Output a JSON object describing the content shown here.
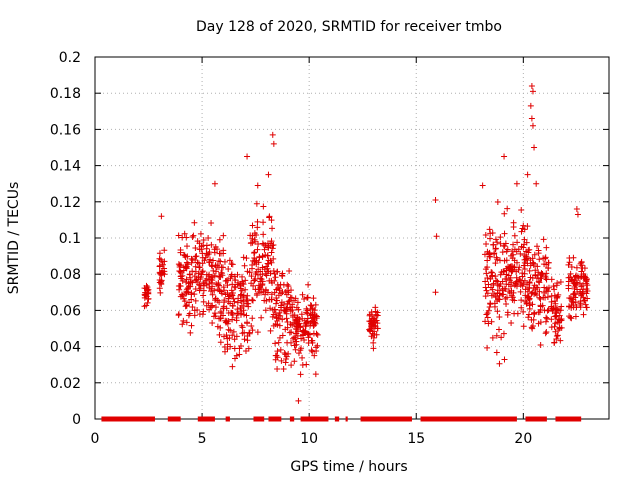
{
  "chart_data": {
    "type": "scatter",
    "title": "Day 128 of 2020, SRMTID for receiver tmbo",
    "xlabel": "GPS time / hours",
    "ylabel": "SRMTID / TECUs",
    "xlim": [
      0,
      24
    ],
    "ylim": [
      0,
      0.2
    ],
    "x_ticks": [
      0,
      5,
      10,
      15,
      20
    ],
    "x_tick_labels": [
      "0",
      "5",
      "10",
      "15",
      "20"
    ],
    "y_ticks": [
      0,
      0.02,
      0.04,
      0.06,
      0.08,
      0.1,
      0.12,
      0.14,
      0.16,
      0.18,
      0.2
    ],
    "y_tick_labels": [
      "0",
      "0.02",
      "0.04",
      "0.06",
      "0.08",
      "0.1",
      "0.12",
      "0.14",
      "0.16",
      "0.18",
      "0.2"
    ],
    "grid": true,
    "marker": "+",
    "marker_color": "#e00000",
    "zero_segments": [
      [
        0.3,
        2.8
      ],
      [
        3.4,
        4.0
      ],
      [
        4.8,
        5.6
      ],
      [
        6.1,
        6.3
      ],
      [
        7.4,
        7.9
      ],
      [
        8.1,
        8.7
      ],
      [
        9.1,
        9.3
      ],
      [
        9.6,
        10.9
      ],
      [
        11.2,
        11.4
      ],
      [
        11.7,
        11.8
      ],
      [
        12.4,
        14.8
      ],
      [
        15.2,
        19.7
      ],
      [
        20.1,
        21.1
      ],
      [
        21.5,
        22.7
      ]
    ],
    "scatter_clusters": [
      {
        "x": [
          2.3,
          2.5
        ],
        "y": [
          0.055,
          0.08
        ]
      },
      {
        "x": [
          3.0,
          3.25
        ],
        "y": [
          0.065,
          0.1
        ]
      },
      {
        "x": [
          3.9,
          4.9
        ],
        "y": [
          0.04,
          0.12
        ]
      },
      {
        "x": [
          4.9,
          6.0
        ],
        "y": [
          0.035,
          0.12
        ]
      },
      {
        "x": [
          6.0,
          7.2
        ],
        "y": [
          0.025,
          0.1
        ]
      },
      {
        "x": [
          7.2,
          8.4
        ],
        "y": [
          0.03,
          0.13
        ]
      },
      {
        "x": [
          8.4,
          9.3
        ],
        "y": [
          0.015,
          0.1
        ]
      },
      {
        "x": [
          9.3,
          10.4
        ],
        "y": [
          0.02,
          0.08
        ]
      },
      {
        "x": [
          12.8,
          13.2
        ],
        "y": [
          0.04,
          0.065
        ]
      },
      {
        "x": [
          18.2,
          19.2
        ],
        "y": [
          0.025,
          0.13
        ]
      },
      {
        "x": [
          19.2,
          20.2
        ],
        "y": [
          0.045,
          0.12
        ]
      },
      {
        "x": [
          20.2,
          21.2
        ],
        "y": [
          0.035,
          0.11
        ]
      },
      {
        "x": [
          21.3,
          21.8
        ],
        "y": [
          0.03,
          0.085
        ]
      },
      {
        "x": [
          22.1,
          23.0
        ],
        "y": [
          0.05,
          0.095
        ]
      }
    ],
    "notable_points": [
      {
        "x": 8.3,
        "y": 0.157
      },
      {
        "x": 8.35,
        "y": 0.152
      },
      {
        "x": 7.1,
        "y": 0.145
      },
      {
        "x": 8.1,
        "y": 0.135
      },
      {
        "x": 7.6,
        "y": 0.129
      },
      {
        "x": 5.6,
        "y": 0.13
      },
      {
        "x": 3.1,
        "y": 0.112
      },
      {
        "x": 9.5,
        "y": 0.01
      },
      {
        "x": 13.0,
        "y": 0.039
      },
      {
        "x": 15.9,
        "y": 0.121
      },
      {
        "x": 15.95,
        "y": 0.101
      },
      {
        "x": 15.9,
        "y": 0.07
      },
      {
        "x": 18.1,
        "y": 0.129
      },
      {
        "x": 19.1,
        "y": 0.145
      },
      {
        "x": 19.7,
        "y": 0.13
      },
      {
        "x": 20.2,
        "y": 0.135
      },
      {
        "x": 20.4,
        "y": 0.184
      },
      {
        "x": 20.45,
        "y": 0.181
      },
      {
        "x": 20.35,
        "y": 0.173
      },
      {
        "x": 20.4,
        "y": 0.166
      },
      {
        "x": 20.45,
        "y": 0.162
      },
      {
        "x": 20.5,
        "y": 0.15
      },
      {
        "x": 20.6,
        "y": 0.13
      },
      {
        "x": 22.5,
        "y": 0.116
      },
      {
        "x": 22.55,
        "y": 0.113
      }
    ]
  }
}
